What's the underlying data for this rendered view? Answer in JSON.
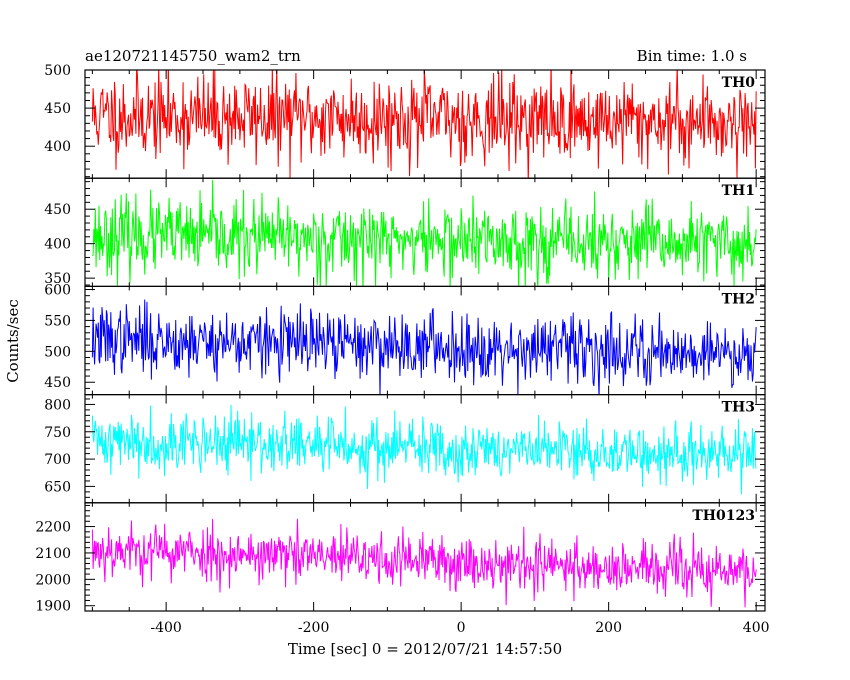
{
  "chart_data": {
    "type": "line",
    "title": "ae120721145750_wam2_trn",
    "subtitle": "Bin time: 1.0 s",
    "xlabel": "Time [sec] 0 = 2012/07/21 14:57:50",
    "ylabel": "Counts/sec",
    "xlim": [
      -510,
      412
    ],
    "x_ticks": [
      "-400",
      "-200",
      "0",
      "200",
      "400"
    ],
    "x_tick_values": [
      -400,
      -200,
      0,
      200,
      400
    ],
    "x_start": -500,
    "x_end": 400,
    "bin": 1.0,
    "grid": false,
    "panels": [
      {
        "name": "TH0",
        "color": "#ff0000",
        "ylim": [
          358,
          500
        ],
        "y_ticks": [
          "400",
          "450",
          "500"
        ],
        "y_tick_values": [
          400,
          450,
          500
        ],
        "mean_start": 440,
        "mean_end": 432,
        "noise": 28,
        "seed": 11
      },
      {
        "name": "TH1",
        "color": "#00ff00",
        "ylim": [
          338,
          495
        ],
        "y_ticks": [
          "350",
          "400",
          "450"
        ],
        "y_tick_values": [
          350,
          400,
          450
        ],
        "mean_start": 412,
        "mean_end": 398,
        "noise": 27,
        "seed": 23
      },
      {
        "name": "TH2",
        "color": "#0000ff",
        "ylim": [
          430,
          605
        ],
        "y_ticks": [
          "450",
          "500",
          "550",
          "600"
        ],
        "y_tick_values": [
          450,
          500,
          550,
          600
        ],
        "mean_start": 520,
        "mean_end": 497,
        "noise": 27,
        "seed": 37
      },
      {
        "name": "TH3",
        "color": "#00ffff",
        "ylim": [
          620,
          818
        ],
        "y_ticks": [
          "650",
          "700",
          "750",
          "800"
        ],
        "y_tick_values": [
          650,
          700,
          750,
          800
        ],
        "mean_start": 735,
        "mean_end": 705,
        "noise": 27,
        "seed": 41
      },
      {
        "name": "TH0123",
        "color": "#ff00ff",
        "ylim": [
          1880,
          2290
        ],
        "y_ticks": [
          "1900",
          "2000",
          "2100",
          "2200"
        ],
        "y_tick_values": [
          1900,
          2000,
          2100,
          2200
        ],
        "mean_start": 2115,
        "mean_end": 2025,
        "noise": 52,
        "seed": 53
      }
    ]
  }
}
